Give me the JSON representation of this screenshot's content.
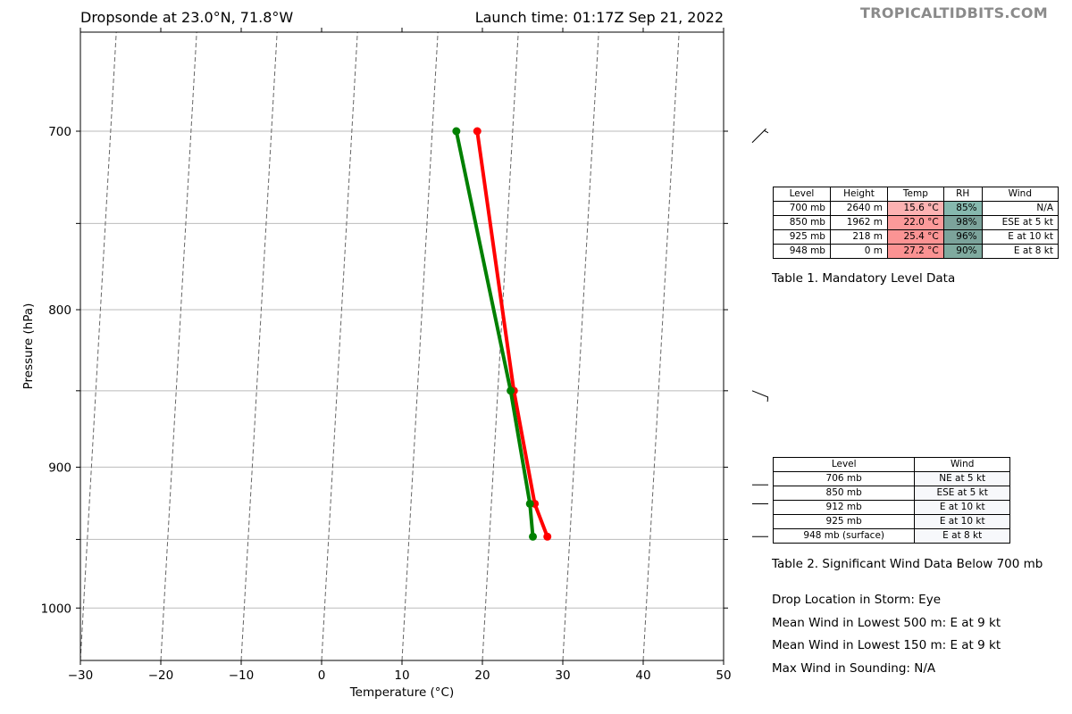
{
  "header": {
    "left_title": "Dropsonde at 23.0°N, 71.8°W",
    "right_title": "Launch time: 01:17Z Sep 21, 2022",
    "watermark": "TROPICALTIDBITS.COM"
  },
  "chart_data": {
    "type": "line",
    "xlabel": "Temperature (°C)",
    "ylabel": "Pressure (hPa)",
    "xlim": [
      -30,
      50
    ],
    "ylim": [
      1040,
      650
    ],
    "y_scale": "log",
    "x_ticks": [
      -30,
      -20,
      -10,
      0,
      10,
      20,
      30,
      40,
      50
    ],
    "x_tick_labels": [
      "−30",
      "−20",
      "−10",
      "0",
      "10",
      "20",
      "30",
      "40",
      "50"
    ],
    "y_tick_labels": [
      700,
      800,
      900,
      1000
    ],
    "grid_pressures": [
      700,
      750,
      800,
      850,
      900,
      950,
      1000
    ],
    "isotherms": [
      -70,
      -60,
      -50,
      -40,
      -30,
      -20,
      -10,
      0,
      10,
      20,
      30,
      40,
      50
    ],
    "colors": {
      "temperature": "#ff0000",
      "dewpoint": "#008000",
      "isotherm": "#666666",
      "grid": "#bbbbbb"
    },
    "series": [
      {
        "key": "temperature",
        "points": [
          [
            700,
            15.6
          ],
          [
            850,
            22.0
          ],
          [
            925,
            25.4
          ],
          [
            948,
            27.2
          ]
        ]
      },
      {
        "key": "dewpoint",
        "points": [
          [
            700,
            13.0
          ],
          [
            850,
            21.6
          ],
          [
            925,
            24.8
          ],
          [
            948,
            25.4
          ]
        ]
      }
    ],
    "wind_barbs": [
      {
        "pressure": 706,
        "from_deg": 45,
        "speed_kt": 5
      },
      {
        "pressure": 850,
        "from_deg": 112,
        "speed_kt": 5
      },
      {
        "pressure": 912,
        "from_deg": 90,
        "speed_kt": 10
      },
      {
        "pressure": 925,
        "from_deg": 90,
        "speed_kt": 10
      },
      {
        "pressure": 948,
        "from_deg": 90,
        "speed_kt": 8
      }
    ]
  },
  "table1": {
    "headers": [
      "Level",
      "Height",
      "Temp",
      "RH",
      "Wind"
    ],
    "rows": [
      {
        "level": "700 mb",
        "height": "2640 m",
        "temp": "15.6 °C",
        "rh": "85%",
        "wind": "N/A",
        "temp_color": "#fcb2b2",
        "rh_color": "#86b8ae"
      },
      {
        "level": "850 mb",
        "height": "1962 m",
        "temp": "22.0 °C",
        "rh": "98%",
        "wind": "ESE at 5 kt",
        "temp_color": "#fb9a9a",
        "rh_color": "#7ca39b"
      },
      {
        "level": "925 mb",
        "height": "218 m",
        "temp": "25.4 °C",
        "rh": "96%",
        "wind": "E at 10 kt",
        "temp_color": "#fb9494",
        "rh_color": "#7ca39b"
      },
      {
        "level": "948 mb",
        "height": "0 m",
        "temp": "27.2 °C",
        "rh": "90%",
        "wind": "E at 8 kt",
        "temp_color": "#fb9292",
        "rh_color": "#7faa9f"
      }
    ],
    "caption": "Table 1. Mandatory Level Data"
  },
  "table2": {
    "headers": [
      "Level",
      "Wind"
    ],
    "rows": [
      {
        "level": "706 mb",
        "wind": "NE at 5 kt"
      },
      {
        "level": "850 mb",
        "wind": "ESE at 5 kt"
      },
      {
        "level": "912 mb",
        "wind": "E at 10 kt"
      },
      {
        "level": "925 mb",
        "wind": "E at 10 kt"
      },
      {
        "level": "948 mb (surface)",
        "wind": "E at 8 kt"
      }
    ],
    "wind_color": "#f7f8fb",
    "caption": "Table 2. Significant Wind Data Below 700 mb"
  },
  "info": {
    "drop_location": "Drop Location in Storm: Eye",
    "mean_wind_500": "Mean Wind in Lowest 500 m:  E at 9 kt",
    "mean_wind_150": "Mean Wind in Lowest 150 m:  E at 9 kt",
    "max_wind": "Max Wind in Sounding:  N/A"
  }
}
